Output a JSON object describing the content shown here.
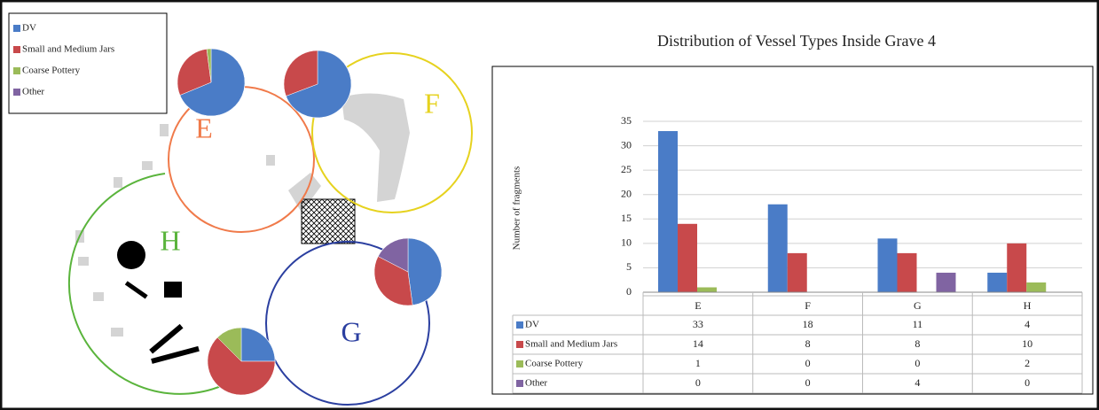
{
  "chart_data": {
    "type": "bar",
    "title": "Distribution of Vessel Types Inside Grave 4",
    "y_label": "Number of fragments",
    "categories": [
      "E",
      "F",
      "G",
      "H"
    ],
    "series": [
      {
        "name": "DV",
        "color": "#4a7cc7",
        "values": [
          33,
          18,
          11,
          4
        ]
      },
      {
        "name": "Small and Medium Jars",
        "color": "#c8494b",
        "values": [
          14,
          8,
          8,
          10
        ]
      },
      {
        "name": "Coarse Pottery",
        "color": "#9bbb59",
        "values": [
          1,
          0,
          0,
          2
        ]
      },
      {
        "name": "Other",
        "color": "#8064a2",
        "values": [
          0,
          0,
          4,
          0
        ]
      }
    ],
    "ylim": [
      0,
      35
    ],
    "yticks": [
      0,
      5,
      10,
      15,
      20,
      25,
      30,
      35
    ],
    "grid": true,
    "map_circle_colors": [
      "#f07a4a",
      "#e6d21e",
      "#2b3fa0",
      "#5ab43c"
    ]
  }
}
